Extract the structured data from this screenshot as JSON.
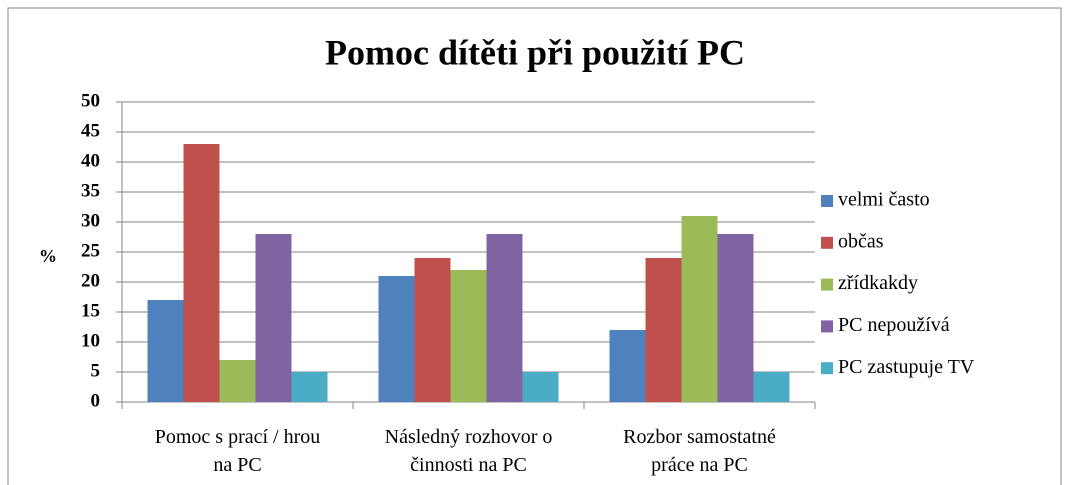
{
  "chart_data": {
    "type": "bar",
    "title": "Pomoc dítěti při použití PC",
    "ylabel": "%",
    "categories": [
      "Pomoc s prací / hrou\nna PC",
      "Následný rozhovor o\nčinnosti na PC",
      "Rozbor samostatné\npráce na PC"
    ],
    "series": [
      {
        "name": "velmi často",
        "color": "#4f81bd",
        "values": [
          17,
          21,
          12
        ]
      },
      {
        "name": "občas",
        "color": "#c0504d",
        "values": [
          43,
          24,
          24
        ]
      },
      {
        "name": "zřídkakdy",
        "color": "#9bbb59",
        "values": [
          7,
          22,
          31
        ]
      },
      {
        "name": "PC nepoužívá",
        "color": "#8064a2",
        "values": [
          28,
          28,
          28
        ]
      },
      {
        "name": "PC zastupuje TV",
        "color": "#4bacc6",
        "values": [
          5,
          5,
          5
        ]
      }
    ],
    "ylim": [
      0,
      50
    ],
    "yticks": [
      0,
      5,
      10,
      15,
      20,
      25,
      30,
      35,
      40,
      45,
      50
    ],
    "grid": true,
    "legend": "right"
  }
}
